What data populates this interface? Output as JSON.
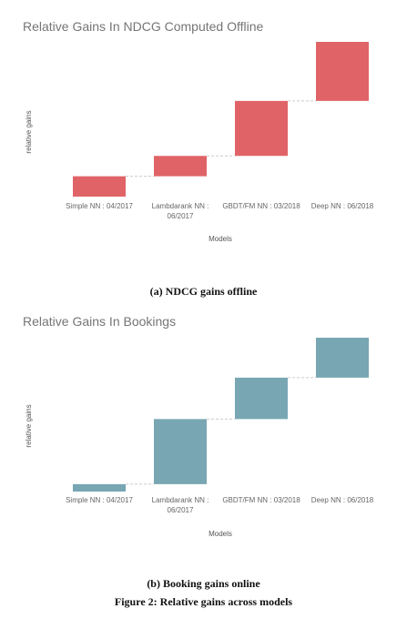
{
  "chart_data": [
    {
      "type": "waterfall",
      "title": "Relative Gains In NDCG Computed Offline",
      "xlabel": "Models",
      "ylabel": "relative gains",
      "categories": [
        "Simple NN : 04/2017",
        "Lambdarank NN : 06/2017",
        "GBDT/FM NN : 03/2018",
        "Deep NN : 06/2018"
      ],
      "values": [
        1.0,
        1.0,
        2.7,
        2.9
      ],
      "color": "#e06467",
      "connector_color": "#cccccc",
      "grid": false,
      "ytick_labels": false
    },
    {
      "type": "waterfall",
      "title": "Relative Gains In Bookings",
      "xlabel": "Models",
      "ylabel": "relative gains",
      "categories": [
        "Simple NN : 04/2017",
        "Lambdarank NN : 06/2017",
        "GBDT/FM NN : 03/2018",
        "Deep NN : 06/2018"
      ],
      "values": [
        0.5,
        4.4,
        2.8,
        2.7
      ],
      "color": "#78a6b3",
      "connector_color": "#cccccc",
      "grid": false,
      "ytick_labels": false
    }
  ],
  "captions": {
    "sub_a": "(a) NDCG gains offline",
    "sub_b": "(b) Booking gains online",
    "figure": "Figure 2: Relative gains across models"
  }
}
